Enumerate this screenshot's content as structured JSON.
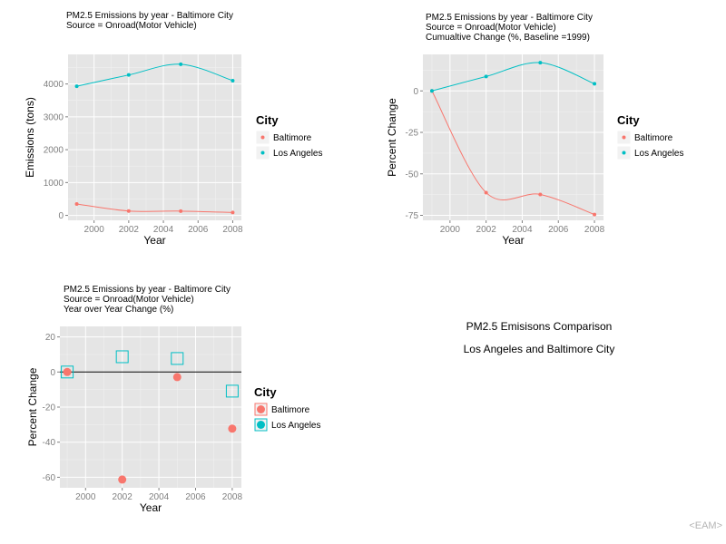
{
  "chart_data": [
    {
      "type": "line",
      "title_lines": [
        "PM2.5 Emissions by year - Baltimore City",
        " Source = Onroad(Motor Vehicle)"
      ],
      "xlabel": "Year",
      "ylabel": "Emissions (tons)",
      "x": [
        1999,
        2002,
        2005,
        2008
      ],
      "xticks": [
        2000,
        2002,
        2004,
        2006,
        2008
      ],
      "xlim": [
        1998.5,
        2008.5
      ],
      "yticks": [
        0,
        1000,
        2000,
        3000,
        4000
      ],
      "ylim": [
        -150,
        4900
      ],
      "grid": true,
      "legend_title": "City",
      "legend_position": "right",
      "series": [
        {
          "name": "Baltimore",
          "color": "#F8766D",
          "values": [
            346.8,
            134.3,
            130.4,
            88.3
          ]
        },
        {
          "name": "Los Angeles",
          "color": "#00BFC4",
          "values": [
            3931.1,
            4274.0,
            4601.4,
            4101.3
          ]
        }
      ]
    },
    {
      "type": "line",
      "title_lines": [
        "PM2.5 Emissions by year - Baltimore City",
        " Source = Onroad(Motor Vehicle)",
        " Cumualtive Change (%, Baseline =1999)"
      ],
      "xlabel": "Year",
      "ylabel": "Percent Change",
      "x": [
        1999,
        2002,
        2005,
        2008
      ],
      "xticks": [
        2000,
        2002,
        2004,
        2006,
        2008
      ],
      "xlim": [
        1998.5,
        2008.5
      ],
      "yticks": [
        0,
        -25,
        -50,
        -75
      ],
      "ylim": [
        -78,
        22
      ],
      "grid": true,
      "legend_title": "City",
      "legend_position": "right",
      "series": [
        {
          "name": "Baltimore",
          "color": "#F8766D",
          "values": [
            0,
            -61.3,
            -62.4,
            -74.5
          ]
        },
        {
          "name": "Los Angeles",
          "color": "#00BFC4",
          "values": [
            0,
            8.7,
            17.0,
            4.3
          ]
        }
      ]
    },
    {
      "type": "scatter",
      "title_lines": [
        "PM2.5 Emissions by year - Baltimore City",
        " Source = Onroad(Motor Vehicle)",
        " Year over Year Change (%)"
      ],
      "xlabel": "Year",
      "ylabel": "Percent Change",
      "x": [
        1999,
        2002,
        2005,
        2008
      ],
      "xticks": [
        2000,
        2002,
        2004,
        2006,
        2008
      ],
      "xlim": [
        1998.6,
        2008.5
      ],
      "yticks": [
        20,
        0,
        -20,
        -40,
        -60
      ],
      "ylim": [
        -66,
        26
      ],
      "hline": 0,
      "grid": true,
      "legend_title": "City",
      "legend_position": "right",
      "series": [
        {
          "name": "Baltimore",
          "color": "#F8766D",
          "marker": "circle",
          "values": [
            0,
            -61.3,
            -2.9,
            -32.3
          ]
        },
        {
          "name": "Los Angeles",
          "color": "#00BFC4",
          "marker": "square",
          "values": [
            0,
            8.7,
            7.7,
            -10.9
          ]
        }
      ]
    }
  ],
  "caption": {
    "line1": "PM2.5 Emisisons Comparison",
    "line2": "Los Angeles and Baltimore City"
  },
  "credit": "<EAM>"
}
